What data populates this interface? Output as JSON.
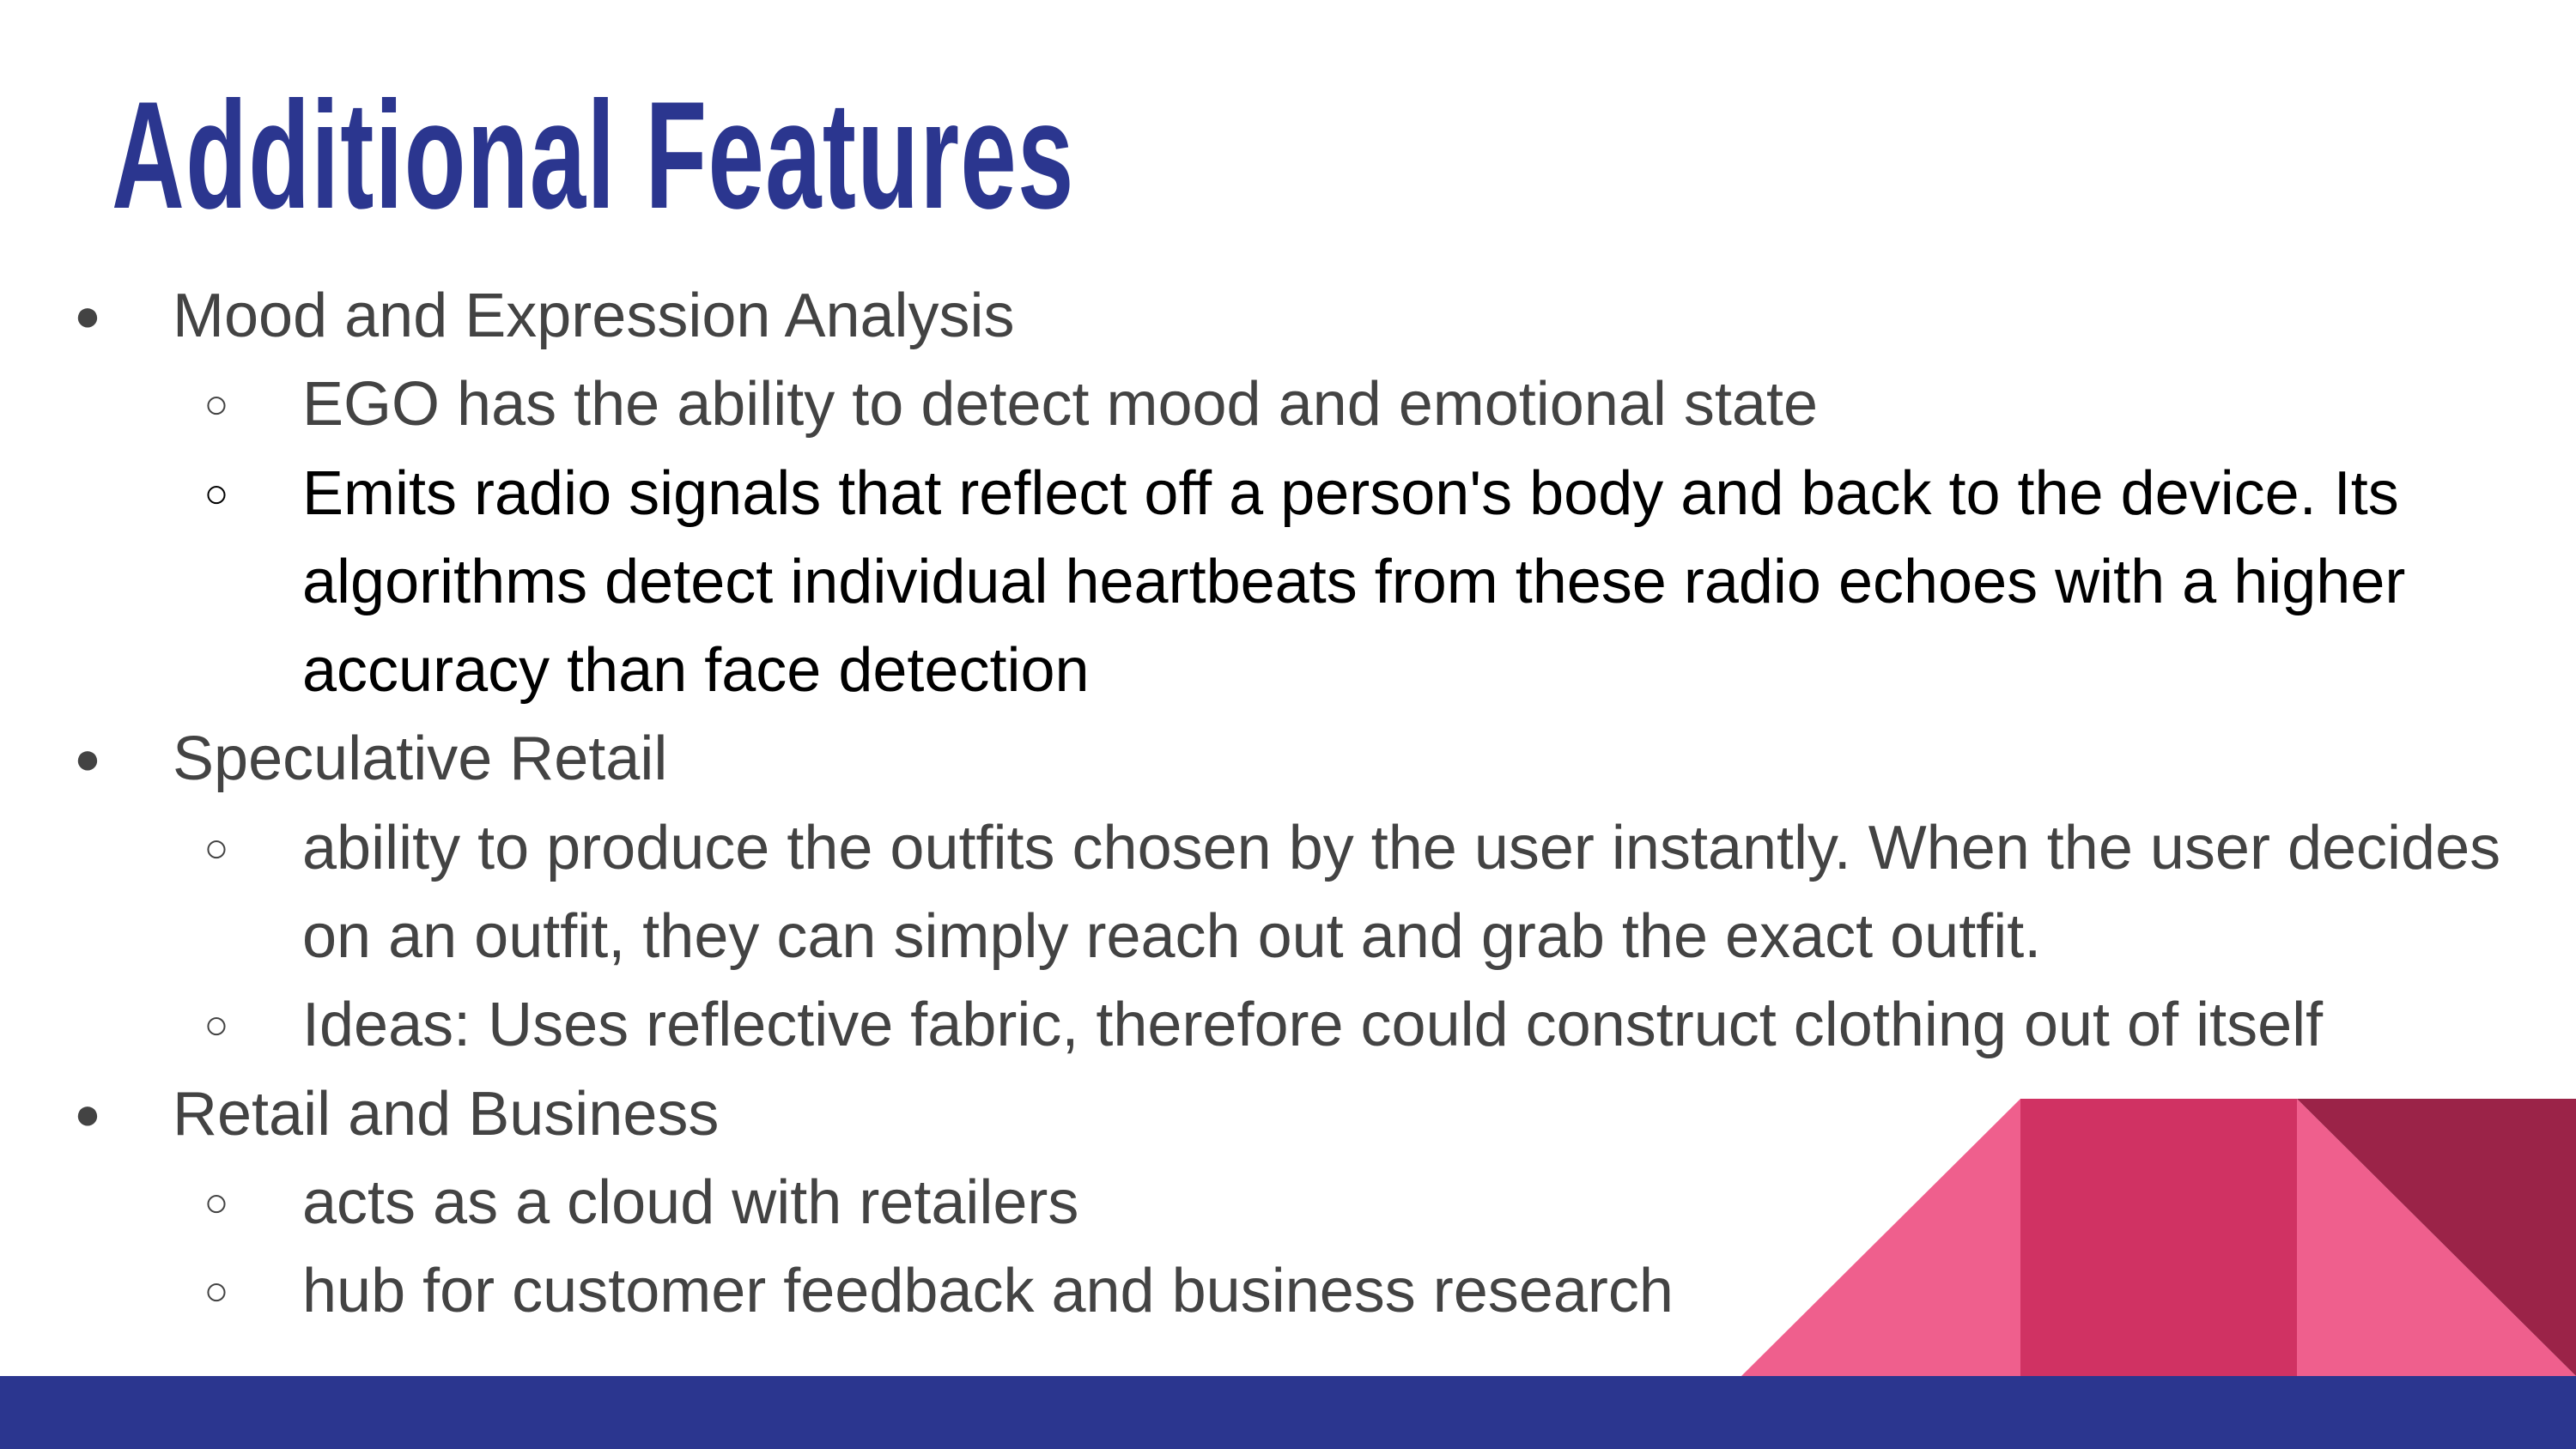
{
  "title": "Additional Features",
  "items": [
    {
      "text": "Mood and Expression Analysis",
      "subitems": [
        "EGO has the ability to detect mood and emotional state",
        "Emits radio signals that reflect off a person's body and back to the device. Its algorithms detect individual heartbeats from these radio echoes with a higher accuracy than face detection"
      ]
    },
    {
      "text": "Speculative Retail",
      "subitems": [
        "ability to produce the outfits chosen by the user instantly. When the user decides on an outfit, they can simply reach out and grab the exact outfit.",
        "Ideas: Uses reflective fabric, therefore could construct clothing out of itself"
      ]
    },
    {
      "text": "Retail and Business",
      "subitems": [
        "acts as a cloud with retailers",
        "hub for customer feedback and business research"
      ]
    }
  ]
}
